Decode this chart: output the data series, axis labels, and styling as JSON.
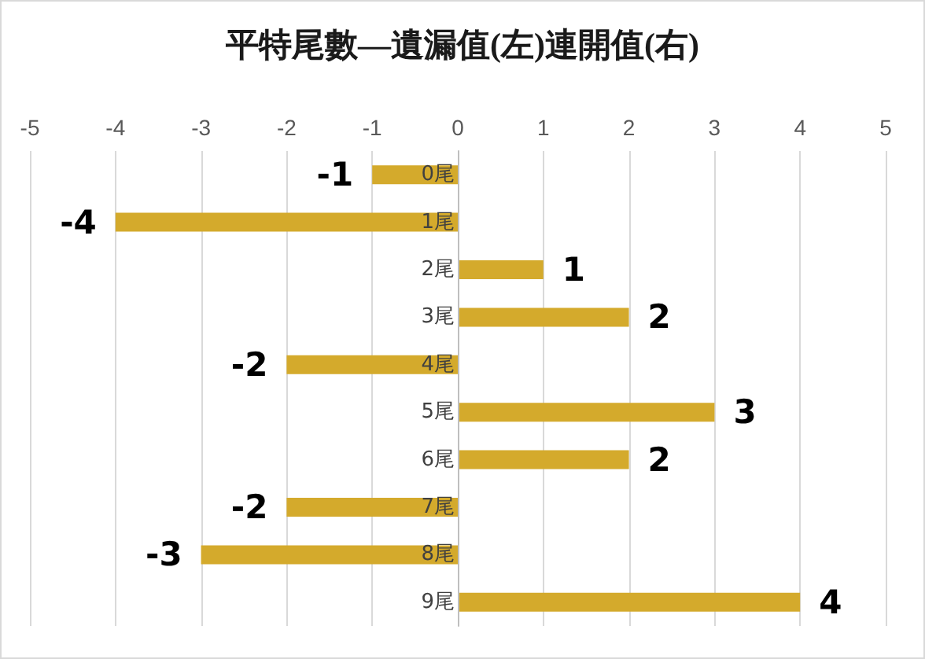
{
  "chart_data": {
    "type": "bar",
    "title": "平特尾數—遺漏值(左)連開值(右)",
    "orientation": "horizontal",
    "categories": [
      "0尾",
      "1尾",
      "2尾",
      "3尾",
      "4尾",
      "5尾",
      "6尾",
      "7尾",
      "8尾",
      "9尾"
    ],
    "values": [
      -1,
      -4,
      1,
      2,
      -2,
      3,
      2,
      -2,
      -3,
      4
    ],
    "color": "#d4aa2c",
    "xlim": [
      -5,
      5
    ],
    "xticks": [
      -5,
      -4,
      -3,
      -2,
      -1,
      0,
      1,
      2,
      3,
      4,
      5
    ],
    "grid": "x",
    "data_labels": true
  }
}
